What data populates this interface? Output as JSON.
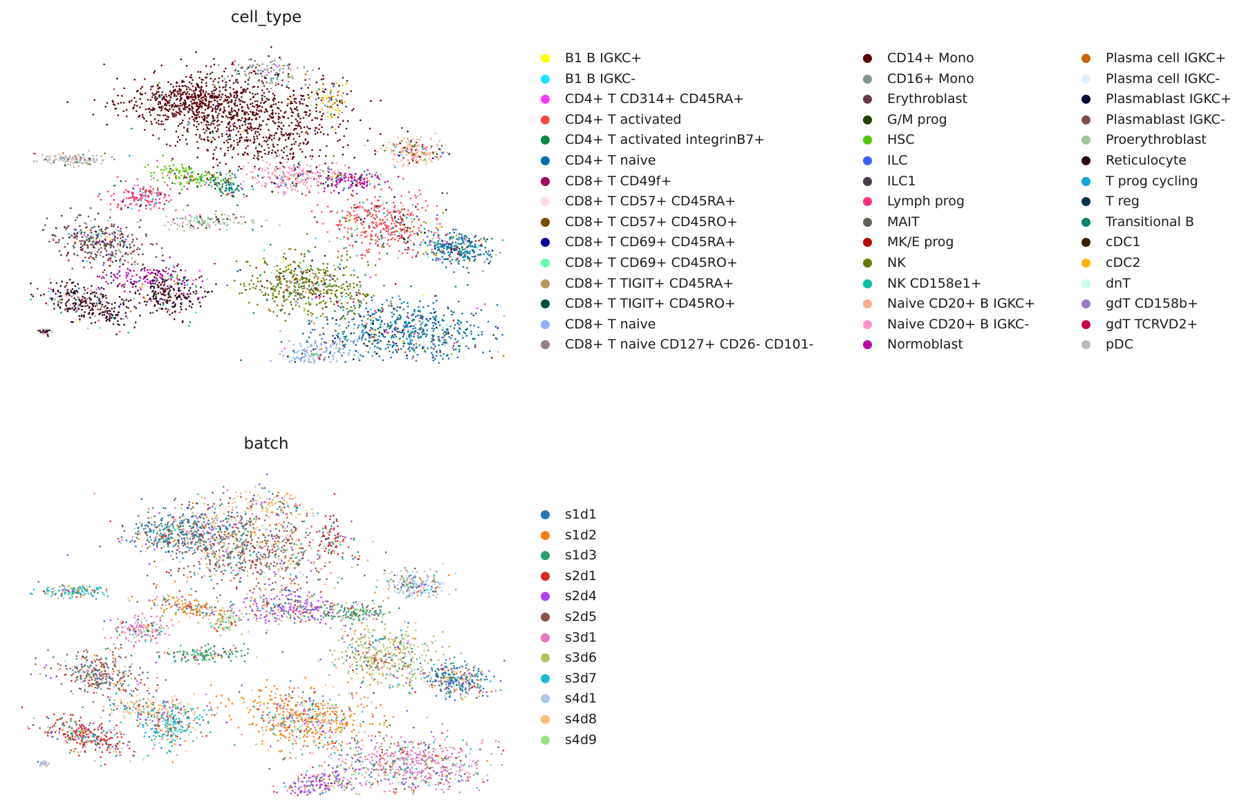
{
  "chart_data": [
    {
      "type": "scatter",
      "title": "cell_type",
      "xlabel": "",
      "ylabel": "",
      "grid": false,
      "legend_placement": "right, 3 columns",
      "series": [
        {
          "name": "B1 B IGKC+",
          "color": "#ffff00"
        },
        {
          "name": "B1 B IGKC-",
          "color": "#1ce6ff"
        },
        {
          "name": "CD4+ T CD314+ CD45RA+",
          "color": "#ff34ff"
        },
        {
          "name": "CD4+ T activated",
          "color": "#ff4a46"
        },
        {
          "name": "CD4+ T activated integrinB7+",
          "color": "#008941"
        },
        {
          "name": "CD4+ T naive",
          "color": "#006fa6"
        },
        {
          "name": "CD8+ T CD49f+",
          "color": "#a30059"
        },
        {
          "name": "CD8+ T CD57+ CD45RA+",
          "color": "#ffdbe5"
        },
        {
          "name": "CD8+ T CD57+ CD45RO+",
          "color": "#7a4900"
        },
        {
          "name": "CD8+ T CD69+ CD45RA+",
          "color": "#0000a6"
        },
        {
          "name": "CD8+ T CD69+ CD45RO+",
          "color": "#63ffac"
        },
        {
          "name": "CD8+ T TIGIT+ CD45RA+",
          "color": "#b79762"
        },
        {
          "name": "CD8+ T TIGIT+ CD45RO+",
          "color": "#004d43"
        },
        {
          "name": "CD8+ T naive",
          "color": "#8fb0ff"
        },
        {
          "name": "CD8+ T naive CD127+ CD26- CD101-",
          "color": "#997d87"
        },
        {
          "name": "CD14+ Mono",
          "color": "#5a0007"
        },
        {
          "name": "CD16+ Mono",
          "color": "#809693"
        },
        {
          "name": "Erythroblast",
          "color": "#6a3a4c"
        },
        {
          "name": "G/M prog",
          "color": "#1b4400"
        },
        {
          "name": "HSC",
          "color": "#4fc601"
        },
        {
          "name": "ILC",
          "color": "#3b5dff"
        },
        {
          "name": "ILC1",
          "color": "#4a3b53"
        },
        {
          "name": "Lymph prog",
          "color": "#ff2f80"
        },
        {
          "name": "MAIT",
          "color": "#61615a"
        },
        {
          "name": "MK/E prog",
          "color": "#ba0900"
        },
        {
          "name": "NK",
          "color": "#6b7900"
        },
        {
          "name": "NK CD158e1+",
          "color": "#00c2a0"
        },
        {
          "name": "Naive CD20+ B IGKC+",
          "color": "#ffaa92"
        },
        {
          "name": "Naive CD20+ B IGKC-",
          "color": "#ff90c9"
        },
        {
          "name": "Normoblast",
          "color": "#b903aa"
        },
        {
          "name": "Plasma cell IGKC+",
          "color": "#d16100"
        },
        {
          "name": "Plasma cell IGKC-",
          "color": "#ddefff"
        },
        {
          "name": "Plasmablast IGKC+",
          "color": "#000035"
        },
        {
          "name": "Plasmablast IGKC-",
          "color": "#7b4f4b"
        },
        {
          "name": "Proerythroblast",
          "color": "#a1c299"
        },
        {
          "name": "Reticulocyte",
          "color": "#300018"
        },
        {
          "name": "T prog cycling",
          "color": "#0aa6d8"
        },
        {
          "name": "T reg",
          "color": "#013349"
        },
        {
          "name": "Transitional B",
          "color": "#00846f"
        },
        {
          "name": "cDC1",
          "color": "#372101"
        },
        {
          "name": "cDC2",
          "color": "#ffb500"
        },
        {
          "name": "dnT",
          "color": "#c2ffed"
        },
        {
          "name": "gdT CD158b+",
          "color": "#a079bf"
        },
        {
          "name": "gdT TCRVD2+",
          "color": "#cc0744"
        },
        {
          "name": "pDC",
          "color": "#c0b9b2"
        }
      ]
    },
    {
      "type": "scatter",
      "title": "batch",
      "xlabel": "",
      "ylabel": "",
      "grid": false,
      "legend_placement": "right",
      "series": [
        {
          "name": "s1d1",
          "color": "#1f77b4"
        },
        {
          "name": "s1d2",
          "color": "#ff7f0e"
        },
        {
          "name": "s1d3",
          "color": "#279e68"
        },
        {
          "name": "s2d1",
          "color": "#d62728"
        },
        {
          "name": "s2d4",
          "color": "#aa40fc"
        },
        {
          "name": "s2d5",
          "color": "#8c564b"
        },
        {
          "name": "s3d1",
          "color": "#e377c2"
        },
        {
          "name": "s3d6",
          "color": "#b5bd61"
        },
        {
          "name": "s3d7",
          "color": "#17becf"
        },
        {
          "name": "s4d1",
          "color": "#aec7e8"
        },
        {
          "name": "s4d8",
          "color": "#ffbb78"
        },
        {
          "name": "s4d9",
          "color": "#98df8a"
        }
      ]
    }
  ]
}
